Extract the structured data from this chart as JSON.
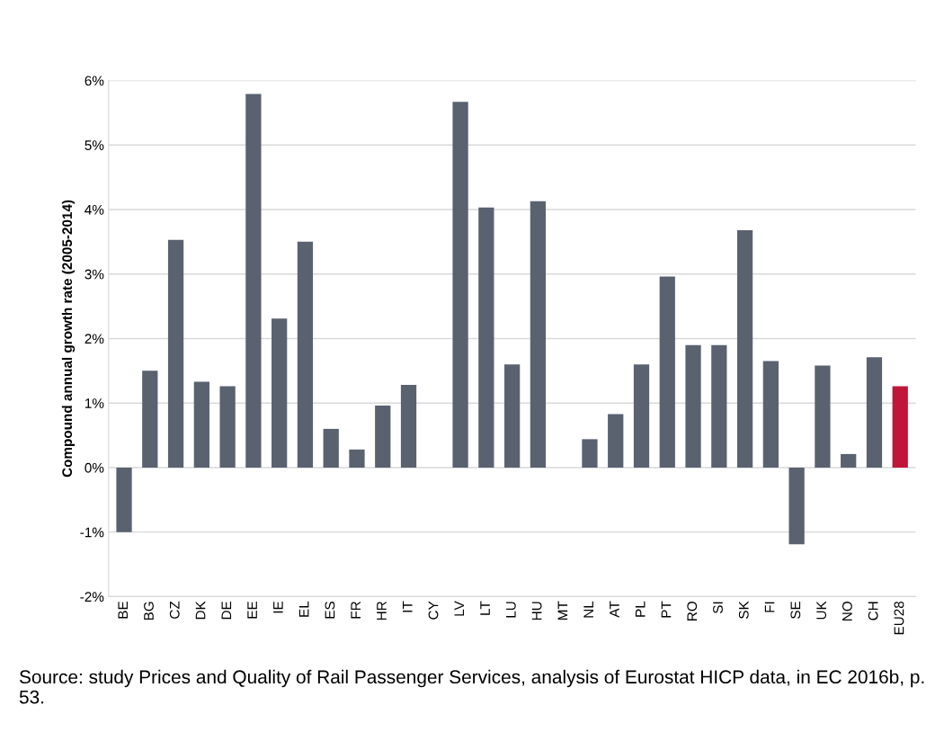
{
  "chart_data": {
    "type": "bar",
    "ylabel": "Compound annual growth rate (2005-2014)",
    "categories": [
      "BE",
      "BG",
      "CZ",
      "DK",
      "DE",
      "EE",
      "IE",
      "EL",
      "ES",
      "FR",
      "HR",
      "IT",
      "CY",
      "LV",
      "LT",
      "LU",
      "HU",
      "MT",
      "NL",
      "AT",
      "PL",
      "PT",
      "RO",
      "SI",
      "SK",
      "FI",
      "SE",
      "UK",
      "NO",
      "CH",
      "EU28"
    ],
    "values": [
      -1.0,
      1.5,
      3.53,
      1.33,
      1.26,
      5.79,
      2.31,
      3.5,
      0.6,
      0.28,
      0.96,
      1.28,
      null,
      5.67,
      4.03,
      1.6,
      4.13,
      null,
      0.44,
      0.83,
      1.6,
      2.96,
      1.9,
      1.9,
      3.68,
      1.65,
      -1.19,
      1.58,
      0.21,
      1.71,
      1.26
    ],
    "colors": [
      "#5a6270",
      "#5a6270",
      "#5a6270",
      "#5a6270",
      "#5a6270",
      "#5a6270",
      "#5a6270",
      "#5a6270",
      "#5a6270",
      "#5a6270",
      "#5a6270",
      "#5a6270",
      "#5a6270",
      "#5a6270",
      "#5a6270",
      "#5a6270",
      "#5a6270",
      "#5a6270",
      "#5a6270",
      "#5a6270",
      "#5a6270",
      "#5a6270",
      "#5a6270",
      "#5a6270",
      "#5a6270",
      "#5a6270",
      "#5a6270",
      "#5a6270",
      "#5a6270",
      "#5a6270",
      "#c0163a"
    ],
    "ylim": [
      -2,
      6
    ],
    "yticks": [
      {
        "value": -2,
        "label": "-2%"
      },
      {
        "value": -1,
        "label": "-1%"
      },
      {
        "value": 0,
        "label": "0%"
      },
      {
        "value": 1,
        "label": "1%"
      },
      {
        "value": 2,
        "label": "2%"
      },
      {
        "value": 3,
        "label": "3%"
      },
      {
        "value": 4,
        "label": "4%"
      },
      {
        "value": 5,
        "label": "5%"
      },
      {
        "value": 6,
        "label": "6%"
      }
    ],
    "grid": "y",
    "annotations": [
      "Source: study Prices and Quality of Rail Passenger Services, analysis of Eurostat HICP data, in EC 2016b, p. 53."
    ]
  }
}
